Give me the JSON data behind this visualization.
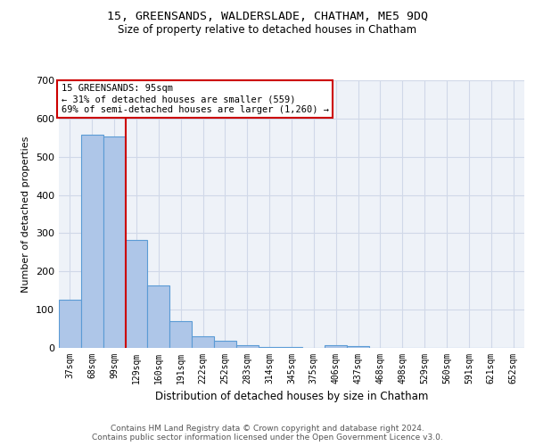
{
  "title1": "15, GREENSANDS, WALDERSLADE, CHATHAM, ME5 9DQ",
  "title2": "Size of property relative to detached houses in Chatham",
  "xlabel": "Distribution of detached houses by size in Chatham",
  "ylabel": "Number of detached properties",
  "categories": [
    "37sqm",
    "68sqm",
    "99sqm",
    "129sqm",
    "160sqm",
    "191sqm",
    "222sqm",
    "252sqm",
    "283sqm",
    "314sqm",
    "345sqm",
    "375sqm",
    "406sqm",
    "437sqm",
    "468sqm",
    "498sqm",
    "529sqm",
    "560sqm",
    "591sqm",
    "621sqm",
    "652sqm"
  ],
  "values": [
    125,
    558,
    553,
    283,
    163,
    70,
    30,
    18,
    8,
    3,
    2,
    1,
    8,
    5,
    0,
    0,
    0,
    0,
    0,
    0,
    0
  ],
  "bar_color": "#aec6e8",
  "bar_edge_color": "#5b9bd5",
  "property_bin_index": 2,
  "annotation_text_line1": "15 GREENSANDS: 95sqm",
  "annotation_text_line2": "← 31% of detached houses are smaller (559)",
  "annotation_text_line3": "69% of semi-detached houses are larger (1,260) →",
  "annotation_box_color": "#ffffff",
  "annotation_box_edge_color": "#cc0000",
  "red_line_color": "#cc0000",
  "grid_color": "#d0d8e8",
  "background_color": "#eef2f8",
  "footer_line1": "Contains HM Land Registry data © Crown copyright and database right 2024.",
  "footer_line2": "Contains public sector information licensed under the Open Government Licence v3.0.",
  "ylim": [
    0,
    700
  ]
}
